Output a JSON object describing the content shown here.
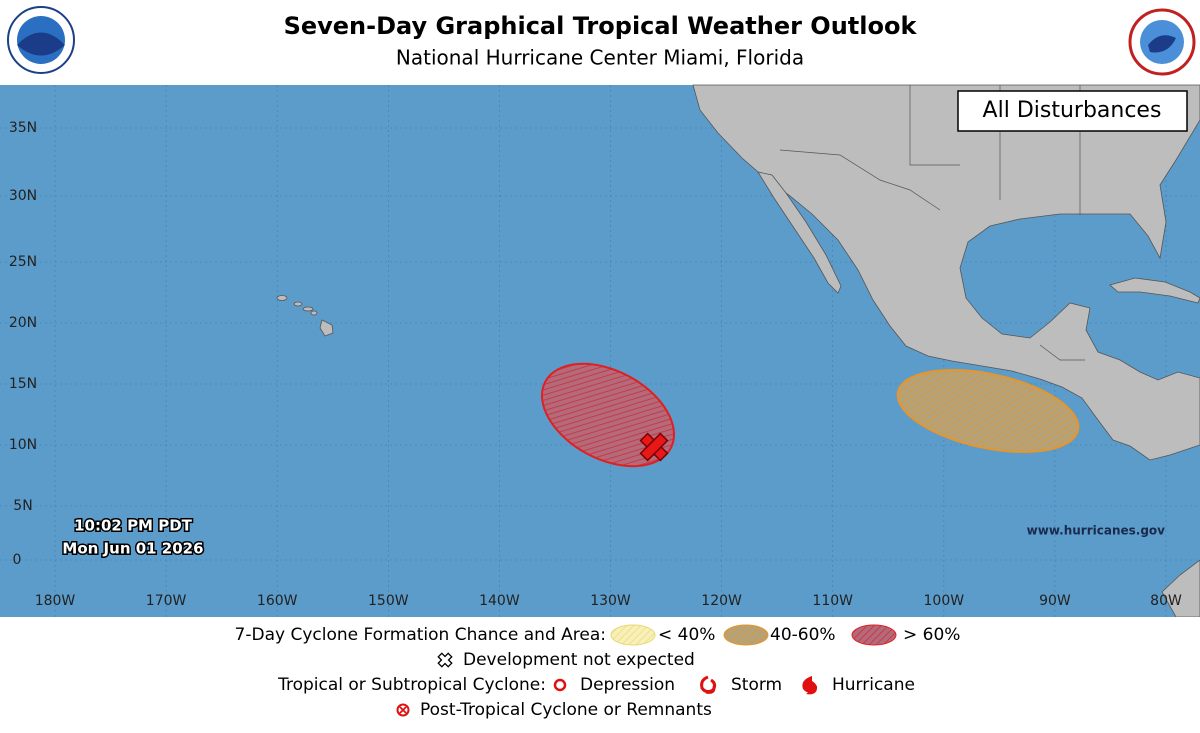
{
  "header": {
    "title": "Seven-Day Graphical Tropical Weather Outlook",
    "subtitle": "National Hurricane Center  Miami, Florida"
  },
  "map": {
    "panel_label": "All Disturbances",
    "lat_labels": [
      "35N",
      "30N",
      "25N",
      "20N",
      "15N",
      "10N",
      "5N",
      "0"
    ],
    "lon_labels": [
      "180W",
      "170W",
      "160W",
      "150W",
      "140W",
      "130W",
      "120W",
      "110W",
      "100W",
      "90W",
      "80W"
    ],
    "issued_time": "10:02 PM PDT",
    "issued_date": "Mon Jun 01 2026",
    "website": "www.hurricanes.gov"
  },
  "legend": {
    "formation_title": "7-Day Cyclone Formation Chance and Area:",
    "low": "< 40%",
    "medium": "40-60%",
    "high": "> 60%",
    "not_expected": "Development not expected",
    "cyclone_title": "Tropical or Subtropical Cyclone:",
    "depression": "Depression",
    "storm": "Storm",
    "hurricane": "Hurricane",
    "post_tropical": "Post-Tropical Cyclone or Remnants"
  }
}
